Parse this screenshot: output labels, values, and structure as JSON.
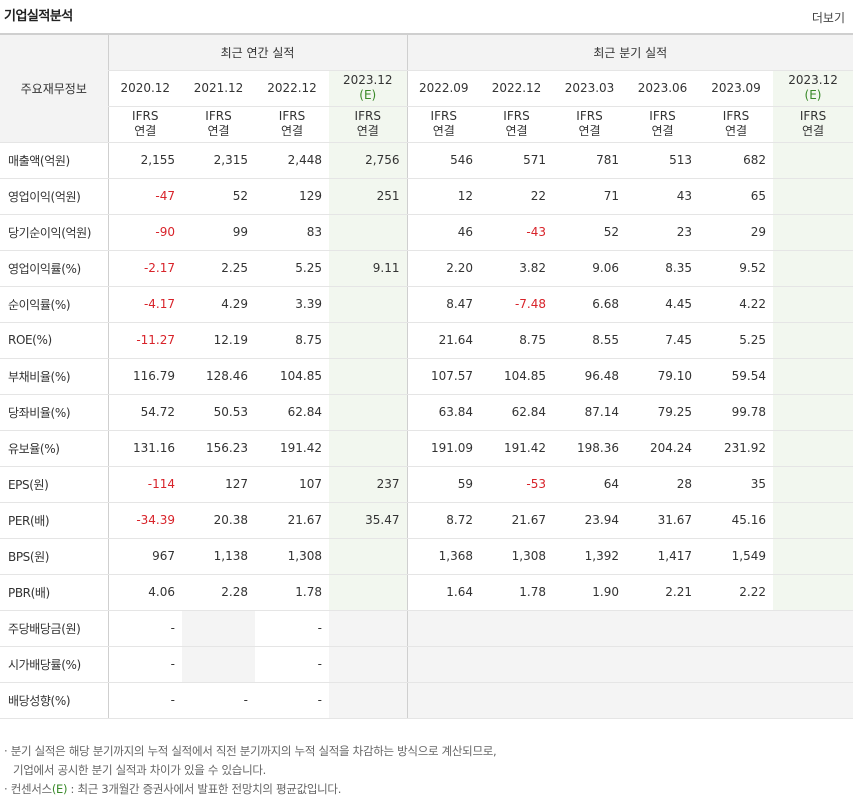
{
  "header": {
    "title": "기업실적분석",
    "more_label": "더보기"
  },
  "table": {
    "corner_label": "주요재무정보",
    "annual_group_label": "최근 연간 실적",
    "quarter_group_label": "최근 분기 실적",
    "annual_periods": [
      {
        "label": "2020.12",
        "estimate": ""
      },
      {
        "label": "2021.12",
        "estimate": ""
      },
      {
        "label": "2022.12",
        "estimate": ""
      },
      {
        "label": "2023.12",
        "estimate": "(E)"
      }
    ],
    "quarter_periods": [
      {
        "label": "2022.09",
        "estimate": ""
      },
      {
        "label": "2022.12",
        "estimate": ""
      },
      {
        "label": "2023.03",
        "estimate": ""
      },
      {
        "label": "2023.06",
        "estimate": ""
      },
      {
        "label": "2023.09",
        "estimate": ""
      },
      {
        "label": "2023.12",
        "estimate": "(E)"
      }
    ],
    "ifrs_line1": "IFRS",
    "ifrs_line2": "연결",
    "rows": [
      {
        "label": "매출액(억원)",
        "values": [
          "2,155",
          "2,315",
          "2,448",
          "2,756",
          "546",
          "571",
          "781",
          "513",
          "682",
          ""
        ]
      },
      {
        "label": "영업이익(억원)",
        "values": [
          "-47",
          "52",
          "129",
          "251",
          "12",
          "22",
          "71",
          "43",
          "65",
          ""
        ]
      },
      {
        "label": "당기순이익(억원)",
        "values": [
          "-90",
          "99",
          "83",
          "",
          "46",
          "-43",
          "52",
          "23",
          "29",
          ""
        ]
      },
      {
        "label": "영업이익률(%)",
        "values": [
          "-2.17",
          "2.25",
          "5.25",
          "9.11",
          "2.20",
          "3.82",
          "9.06",
          "8.35",
          "9.52",
          ""
        ]
      },
      {
        "label": "순이익률(%)",
        "values": [
          "-4.17",
          "4.29",
          "3.39",
          "",
          "8.47",
          "-7.48",
          "6.68",
          "4.45",
          "4.22",
          ""
        ]
      },
      {
        "label": "ROE(%)",
        "values": [
          "-11.27",
          "12.19",
          "8.75",
          "",
          "21.64",
          "8.75",
          "8.55",
          "7.45",
          "5.25",
          ""
        ]
      },
      {
        "label": "부채비율(%)",
        "values": [
          "116.79",
          "128.46",
          "104.85",
          "",
          "107.57",
          "104.85",
          "96.48",
          "79.10",
          "59.54",
          ""
        ]
      },
      {
        "label": "당좌비율(%)",
        "values": [
          "54.72",
          "50.53",
          "62.84",
          "",
          "63.84",
          "62.84",
          "87.14",
          "79.25",
          "99.78",
          ""
        ]
      },
      {
        "label": "유보율(%)",
        "values": [
          "131.16",
          "156.23",
          "191.42",
          "",
          "191.09",
          "191.42",
          "198.36",
          "204.24",
          "231.92",
          ""
        ]
      },
      {
        "label": "EPS(원)",
        "values": [
          "-114",
          "127",
          "107",
          "237",
          "59",
          "-53",
          "64",
          "28",
          "35",
          ""
        ]
      },
      {
        "label": "PER(배)",
        "values": [
          "-34.39",
          "20.38",
          "21.67",
          "35.47",
          "8.72",
          "21.67",
          "23.94",
          "31.67",
          "45.16",
          ""
        ]
      },
      {
        "label": "BPS(원)",
        "values": [
          "967",
          "1,138",
          "1,308",
          "",
          "1,368",
          "1,308",
          "1,392",
          "1,417",
          "1,549",
          ""
        ]
      },
      {
        "label": "PBR(배)",
        "values": [
          "4.06",
          "2.28",
          "1.78",
          "",
          "1.64",
          "1.78",
          "1.90",
          "2.21",
          "2.22",
          ""
        ]
      },
      {
        "label": "주당배당금(원)",
        "values": [
          "-",
          "",
          "-",
          "",
          "",
          "",
          "",
          "",
          "",
          ""
        ]
      },
      {
        "label": "시가배당률(%)",
        "values": [
          "-",
          "",
          "-",
          "",
          "",
          "",
          "",
          "",
          "",
          ""
        ]
      },
      {
        "label": "배당성향(%)",
        "values": [
          "-",
          "-",
          "-",
          "",
          "",
          "",
          "",
          "",
          "",
          ""
        ]
      }
    ]
  },
  "notes": {
    "line1": "· 분기 실적은 해당 분기까지의 누적 실적에서 직전 분기까지의 누적 실적을 차감하는 방식으로 계산되므로,",
    "line2": "기업에서 공시한 분기 실적과 차이가 있을 수 있습니다.",
    "line3_prefix": "· 컨센서스",
    "line3_mark": "(E)",
    "line3_suffix": ": 최근 3개월간 증권사에서 발표한 전망치의 평균값입니다."
  },
  "colors": {
    "negative": "#d8232a",
    "ifrs": "#e8641e",
    "estimate_bg": "#f2f7ef",
    "estimate_mark": "#3a8a2a"
  }
}
